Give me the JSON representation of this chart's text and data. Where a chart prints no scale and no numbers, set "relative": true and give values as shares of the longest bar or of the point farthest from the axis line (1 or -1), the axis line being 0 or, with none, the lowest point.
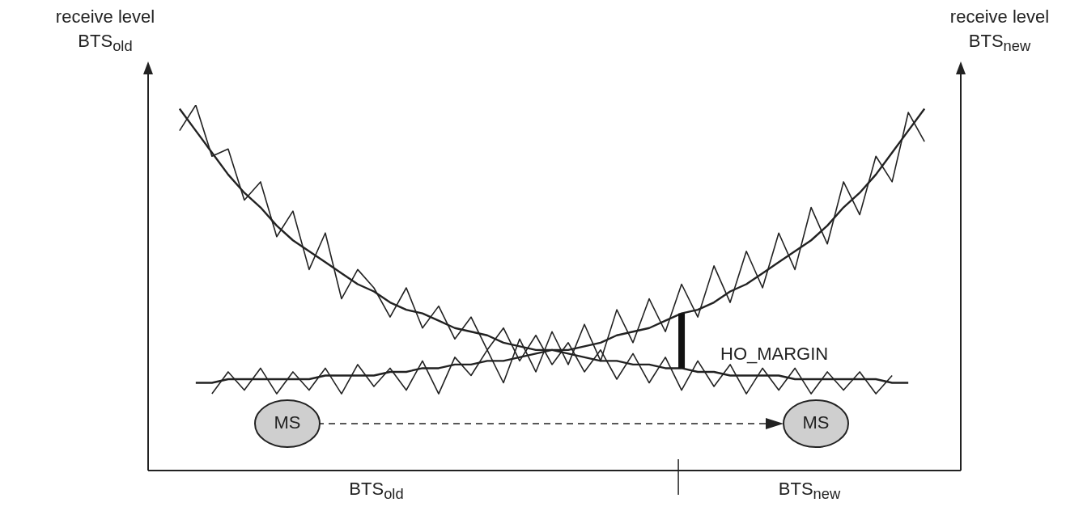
{
  "chart_data": {
    "type": "line",
    "relative": true,
    "ylabel": "receive level BTS$_{old}$",
    "y2label": "receive level BTS$_{new}$",
    "categories": [
      null,
      null,
      null,
      null,
      null,
      null,
      null,
      null,
      null,
      null,
      null,
      null,
      null,
      null,
      null,
      null,
      null,
      null,
      null,
      null,
      null,
      null,
      null,
      null,
      null,
      null,
      null,
      null,
      null,
      null,
      null,
      null,
      null,
      null,
      null,
      null,
      null,
      null,
      null,
      null,
      null,
      null,
      null,
      null,
      null,
      null,
      null
    ],
    "series": [
      {
        "color": "#222222",
        "values": [
          0.99,
          0.93,
          0.87,
          0.81,
          0.76,
          0.72,
          0.67,
          0.63,
          0.6,
          0.57,
          0.54,
          0.51,
          0.49,
          0.46,
          0.44,
          0.43,
          0.41,
          0.39,
          0.38,
          0.37,
          0.35,
          0.34,
          0.33,
          0.33,
          0.32,
          0.31,
          0.3,
          0.3,
          0.29,
          0.29,
          0.28,
          0.28,
          0.27,
          0.27,
          0.26,
          0.26,
          0.26,
          0.26,
          0.25,
          0.25,
          0.25,
          0.25,
          0.25,
          0.25,
          0.24,
          0.24,
          null
        ]
      },
      {
        "color": "#222222",
        "values": [
          null,
          0.24,
          0.24,
          0.25,
          0.25,
          0.25,
          0.25,
          0.25,
          0.25,
          0.26,
          0.26,
          0.26,
          0.26,
          0.27,
          0.27,
          0.28,
          0.28,
          0.29,
          0.29,
          0.3,
          0.3,
          0.31,
          0.32,
          0.33,
          0.33,
          0.34,
          0.35,
          0.37,
          0.38,
          0.39,
          0.41,
          0.43,
          0.44,
          0.46,
          0.49,
          0.51,
          0.54,
          0.57,
          0.6,
          0.63,
          0.67,
          0.72,
          0.76,
          0.81,
          0.87,
          0.93,
          0.99
        ]
      },
      {
        "color": "#222222",
        "values": [
          0.93,
          1.0,
          0.86,
          0.88,
          0.74,
          0.79,
          0.64,
          0.71,
          0.55,
          0.65,
          0.47,
          0.55,
          0.5,
          0.42,
          0.5,
          0.39,
          0.45,
          0.36,
          0.42,
          0.33,
          0.39,
          0.3,
          0.37,
          0.29,
          0.35,
          0.27,
          0.33,
          0.25,
          0.32,
          0.24,
          0.31,
          0.22,
          0.3,
          0.23,
          0.29,
          0.21,
          0.28,
          0.22,
          0.28,
          0.21,
          0.27,
          0.22,
          0.27,
          0.21,
          0.26,
          null,
          null
        ]
      },
      {
        "color": "#222222",
        "values": [
          null,
          null,
          0.21,
          0.27,
          0.22,
          0.28,
          0.21,
          0.27,
          0.22,
          0.28,
          0.21,
          0.29,
          0.23,
          0.28,
          0.22,
          0.3,
          0.21,
          0.31,
          0.26,
          0.33,
          0.24,
          0.36,
          0.27,
          0.38,
          0.29,
          0.4,
          0.3,
          0.44,
          0.35,
          0.47,
          0.38,
          0.51,
          0.42,
          0.56,
          0.46,
          0.6,
          0.5,
          0.65,
          0.55,
          0.72,
          0.62,
          0.79,
          0.7,
          0.86,
          0.79,
          0.98,
          0.9
        ]
      }
    ],
    "marker": "none",
    "line_style": "solid",
    "grid": false,
    "tick_labels": false,
    "annotations": [
      "HO_MARGIN",
      "MS",
      "MS",
      "BTS$_{old}$",
      "BTS$_{new}$"
    ]
  }
}
